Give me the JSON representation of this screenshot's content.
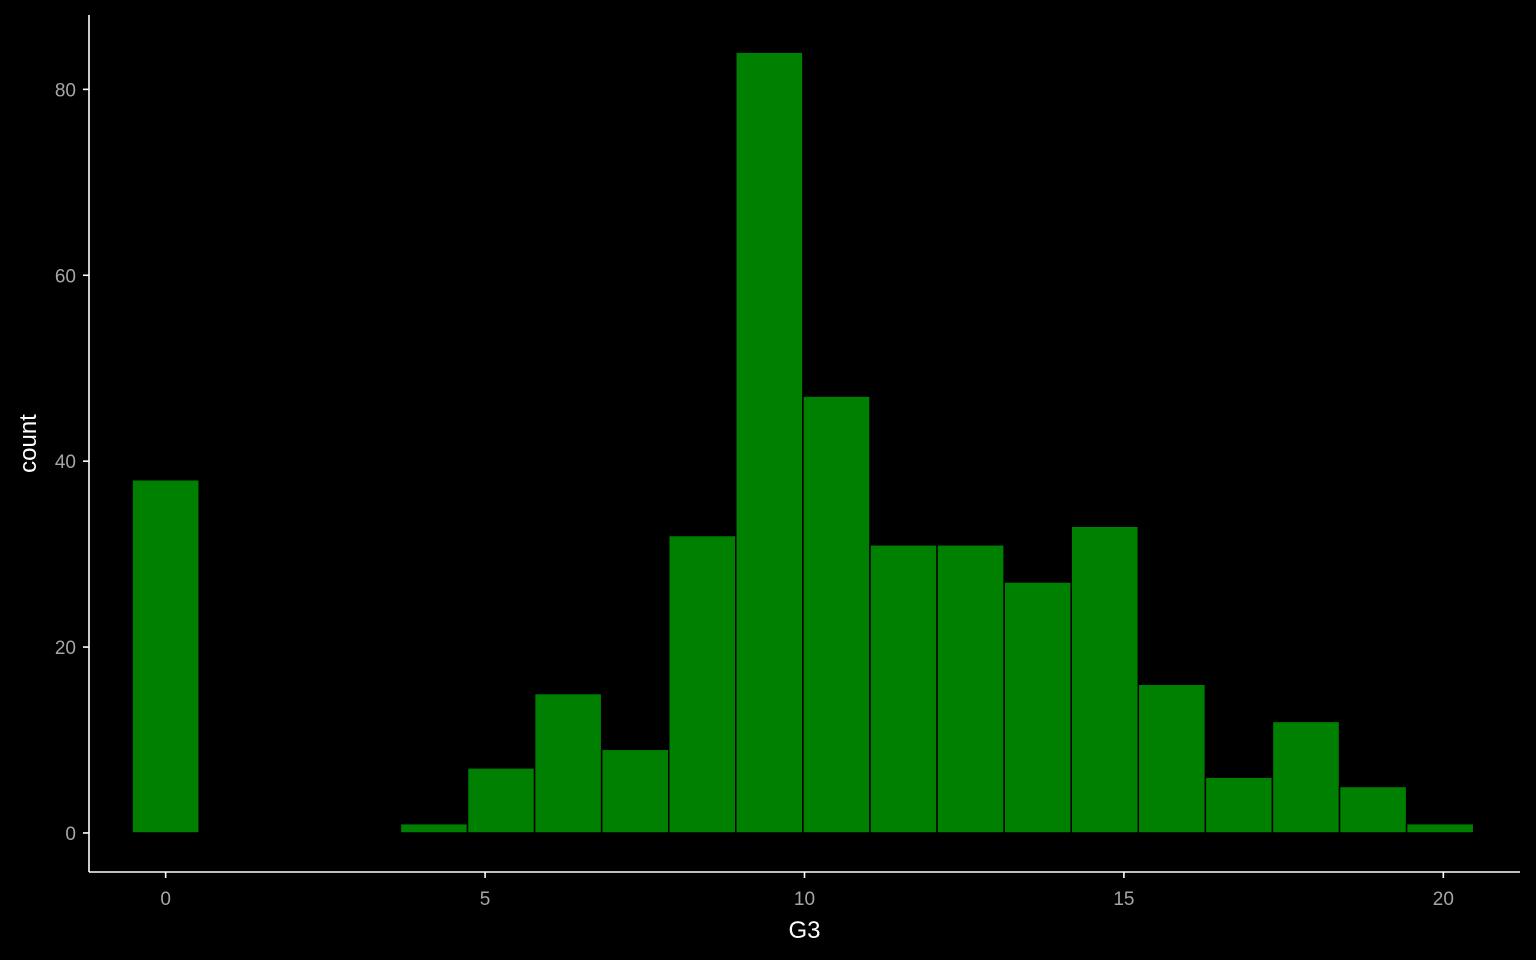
{
  "chart_data": {
    "type": "bar",
    "subtype": "histogram",
    "xlabel": "G3",
    "ylabel": "count",
    "xlim": [
      -1.2,
      21.2
    ],
    "ylim": [
      -4.2,
      88
    ],
    "x_ticks": [
      0,
      5,
      10,
      15,
      20
    ],
    "y_ticks": [
      0,
      20,
      40,
      60,
      80
    ],
    "bin_width": 1.05,
    "bins": [
      {
        "center": 0.0,
        "count": 38
      },
      {
        "center": 4.2,
        "count": 1
      },
      {
        "center": 5.25,
        "count": 7
      },
      {
        "center": 6.3,
        "count": 15
      },
      {
        "center": 7.35,
        "count": 9
      },
      {
        "center": 8.4,
        "count": 32
      },
      {
        "center": 9.45,
        "count": 84
      },
      {
        "center": 10.5,
        "count": 47
      },
      {
        "center": 11.55,
        "count": 31
      },
      {
        "center": 12.6,
        "count": 31
      },
      {
        "center": 13.65,
        "count": 27
      },
      {
        "center": 14.7,
        "count": 33
      },
      {
        "center": 15.75,
        "count": 16
      },
      {
        "center": 16.8,
        "count": 6
      },
      {
        "center": 17.85,
        "count": 12
      },
      {
        "center": 18.9,
        "count": 5
      },
      {
        "center": 19.95,
        "count": 1
      }
    ],
    "grid": false,
    "legend": "none",
    "colors": {
      "background": "#000000",
      "bar_fill": "#008000",
      "bar_stroke": "#000000",
      "axis": "#ffffff",
      "tick_label": "#a6a6a6",
      "axis_title": "#ffffff"
    }
  }
}
